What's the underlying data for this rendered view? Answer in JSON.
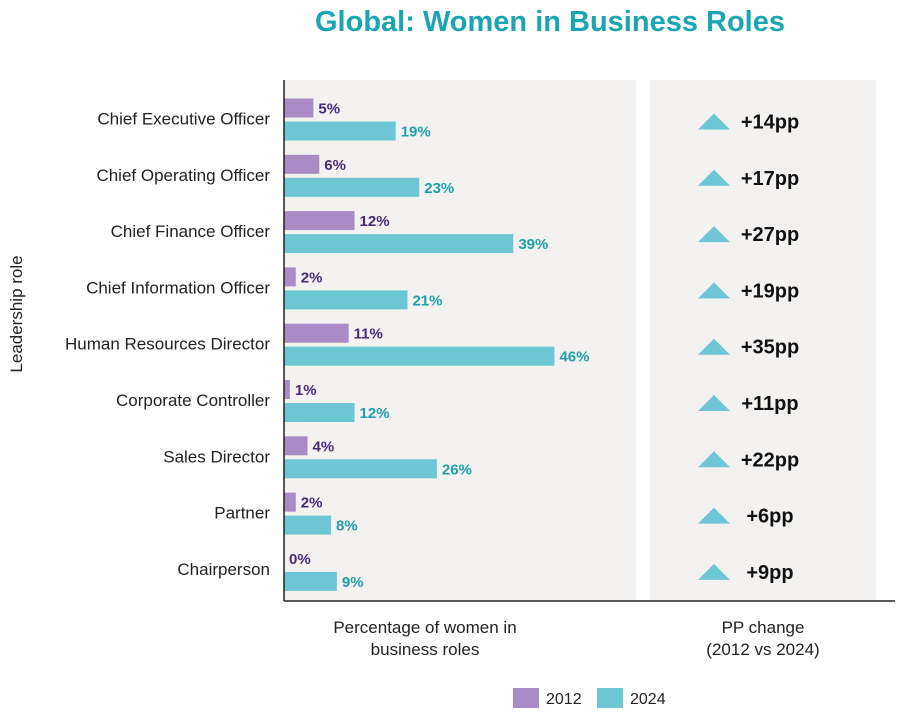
{
  "chart_data": {
    "type": "bar",
    "title": "Global: Women in Business Roles",
    "ylabel": "Leadership role",
    "xlabel_lines": [
      "Percentage of women in",
      "business roles"
    ],
    "change_label_lines": [
      "PP change",
      "(2012 vs 2024)"
    ],
    "xlim": [
      0,
      100
    ],
    "categories": [
      "Chief Executive Officer",
      "Chief Operating Officer",
      "Chief Finance Officer",
      "Chief Information Officer",
      "Human Resources Director",
      "Corporate Controller",
      "Sales Director",
      "Partner",
      "Chairperson"
    ],
    "series": [
      {
        "name": "2012",
        "color": "#a98cc6",
        "label_color": "#4a2a78",
        "values": [
          5,
          6,
          12,
          2,
          11,
          1,
          4,
          2,
          0
        ],
        "labels": [
          "5%",
          "6%",
          "12%",
          "2%",
          "11%",
          "1%",
          "4%",
          "2%",
          "0%"
        ]
      },
      {
        "name": "2024",
        "color": "#6dc6d4",
        "label_color": "#1f9faa",
        "values": [
          19,
          23,
          39,
          21,
          46,
          12,
          26,
          8,
          9
        ],
        "labels": [
          "19%",
          "23%",
          "39%",
          "21%",
          "46%",
          "12%",
          "26%",
          "8%",
          "9%"
        ]
      }
    ],
    "pp_change": [
      "+14pp",
      "+17pp",
      "+27pp",
      "+19pp",
      "+35pp",
      "+11pp",
      "+22pp",
      "+6pp",
      "+9pp"
    ],
    "legend_position": "bottom-right"
  },
  "colors": {
    "title": "#1aa5b3",
    "panel_bg": "#f3f2f1",
    "triangle": "#6dc6d4",
    "axis": "#222222"
  }
}
